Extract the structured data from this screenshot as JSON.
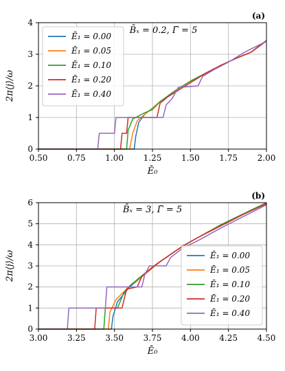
{
  "chart_data": [
    {
      "type": "line",
      "panel_label": "(a)",
      "annotation": "B̄ₓ = 0.2, Γ̄ = 5",
      "xlabel": "Ē₀",
      "ylabel": "2π⟨j⟩/ω",
      "xlim": [
        0.5,
        2.0
      ],
      "ylim": [
        0,
        4
      ],
      "xticks": [
        "0.50",
        "0.75",
        "1.00",
        "1.25",
        "1.50",
        "1.75",
        "2.00"
      ],
      "xtick_values": [
        0.5,
        0.75,
        1.0,
        1.25,
        1.5,
        1.75,
        2.0
      ],
      "yticks": [
        "0",
        "1",
        "2",
        "3",
        "4"
      ],
      "ytick_values": [
        0,
        1,
        2,
        3,
        4
      ],
      "grid": true,
      "legend_position": "top-left",
      "series": [
        {
          "name": "Ē₁ = 0.00",
          "color": "#1f77b4",
          "points": [
            [
              0.5,
              0
            ],
            [
              1.13,
              0
            ],
            [
              1.14,
              0.4
            ],
            [
              1.16,
              0.85
            ],
            [
              1.2,
              1.1
            ],
            [
              1.3,
              1.5
            ],
            [
              1.4,
              1.85
            ],
            [
              1.5,
              2.15
            ],
            [
              1.6,
              2.4
            ],
            [
              1.7,
              2.65
            ],
            [
              1.8,
              2.87
            ],
            [
              1.9,
              3.07
            ],
            [
              2.0,
              3.44
            ]
          ]
        },
        {
          "name": "Ē₁ = 0.05",
          "color": "#ff7f0e",
          "points": [
            [
              0.5,
              0
            ],
            [
              1.1,
              0
            ],
            [
              1.12,
              0.5
            ],
            [
              1.15,
              0.9
            ],
            [
              1.2,
              1.1
            ],
            [
              1.3,
              1.5
            ],
            [
              1.4,
              1.85
            ],
            [
              1.5,
              2.15
            ],
            [
              1.6,
              2.4
            ],
            [
              1.7,
              2.65
            ],
            [
              1.8,
              2.87
            ],
            [
              1.9,
              3.07
            ],
            [
              2.0,
              3.43
            ]
          ]
        },
        {
          "name": "Ē₁ = 0.10",
          "color": "#2ca02c",
          "points": [
            [
              0.5,
              0
            ],
            [
              1.08,
              0
            ],
            [
              1.09,
              0.6
            ],
            [
              1.12,
              0.95
            ],
            [
              1.2,
              1.15
            ],
            [
              1.25,
              1.25
            ],
            [
              1.3,
              1.5
            ],
            [
              1.4,
              1.85
            ],
            [
              1.5,
              2.15
            ],
            [
              1.6,
              2.4
            ],
            [
              1.7,
              2.65
            ],
            [
              1.8,
              2.87
            ],
            [
              1.9,
              3.07
            ],
            [
              2.0,
              3.43
            ]
          ]
        },
        {
          "name": "Ē₁ = 0.20",
          "color": "#d62728",
          "points": [
            [
              0.5,
              0
            ],
            [
              1.04,
              0
            ],
            [
              1.05,
              0.5
            ],
            [
              1.08,
              0.5
            ],
            [
              1.09,
              1.0
            ],
            [
              1.28,
              1.0
            ],
            [
              1.3,
              1.45
            ],
            [
              1.35,
              1.65
            ],
            [
              1.4,
              1.8
            ],
            [
              1.5,
              2.1
            ],
            [
              1.6,
              2.4
            ],
            [
              1.7,
              2.65
            ],
            [
              1.8,
              2.87
            ],
            [
              1.9,
              3.07
            ],
            [
              2.0,
              3.42
            ]
          ]
        },
        {
          "name": "Ē₁ = 0.40",
          "color": "#9467bd",
          "points": [
            [
              0.5,
              0
            ],
            [
              0.89,
              0
            ],
            [
              0.9,
              0.5
            ],
            [
              1.0,
              0.5
            ],
            [
              1.01,
              1.0
            ],
            [
              1.32,
              1.0
            ],
            [
              1.34,
              1.4
            ],
            [
              1.38,
              1.6
            ],
            [
              1.42,
              1.95
            ],
            [
              1.55,
              2.0
            ],
            [
              1.58,
              2.3
            ],
            [
              1.65,
              2.5
            ],
            [
              1.75,
              2.75
            ],
            [
              1.85,
              3.05
            ],
            [
              2.0,
              3.41
            ]
          ]
        }
      ]
    },
    {
      "type": "line",
      "panel_label": "(b)",
      "annotation": "B̄ₓ = 3, Γ̄ = 5",
      "xlabel": "Ē₀",
      "ylabel": "2π⟨j⟩/ω",
      "xlim": [
        3.0,
        4.5
      ],
      "ylim": [
        0,
        6
      ],
      "xticks": [
        "3.00",
        "3.25",
        "3.50",
        "3.75",
        "4.00",
        "4.25",
        "4.50"
      ],
      "xtick_values": [
        3.0,
        3.25,
        3.5,
        3.75,
        4.0,
        4.25,
        4.5
      ],
      "yticks": [
        "0",
        "1",
        "2",
        "3",
        "4",
        "5",
        "6"
      ],
      "ytick_values": [
        0,
        1,
        2,
        3,
        4,
        5,
        6
      ],
      "grid": true,
      "legend_position": "bottom-right",
      "series": [
        {
          "name": "Ē₁ = 0.00",
          "color": "#1f77b4",
          "points": [
            [
              3.0,
              0
            ],
            [
              3.48,
              0
            ],
            [
              3.49,
              0.6
            ],
            [
              3.52,
              1.3
            ],
            [
              3.6,
              2.0
            ],
            [
              3.7,
              2.6
            ],
            [
              3.8,
              3.2
            ],
            [
              3.9,
              3.7
            ],
            [
              4.0,
              4.15
            ],
            [
              4.1,
              4.55
            ],
            [
              4.2,
              4.95
            ],
            [
              4.3,
              5.3
            ],
            [
              4.4,
              5.65
            ],
            [
              4.5,
              6.0
            ]
          ]
        },
        {
          "name": "Ē₁ = 0.05",
          "color": "#ff7f0e",
          "points": [
            [
              3.0,
              0
            ],
            [
              3.46,
              0
            ],
            [
              3.47,
              0.8
            ],
            [
              3.51,
              1.4
            ],
            [
              3.6,
              2.05
            ],
            [
              3.7,
              2.6
            ],
            [
              3.8,
              3.2
            ],
            [
              3.9,
              3.7
            ],
            [
              4.0,
              4.15
            ],
            [
              4.1,
              4.55
            ],
            [
              4.2,
              4.95
            ],
            [
              4.3,
              5.3
            ],
            [
              4.4,
              5.65
            ],
            [
              4.5,
              6.0
            ]
          ]
        },
        {
          "name": "Ē₁ = 0.10",
          "color": "#2ca02c",
          "points": [
            [
              3.0,
              0
            ],
            [
              3.43,
              0
            ],
            [
              3.44,
              1.0
            ],
            [
              3.52,
              1.0
            ],
            [
              3.56,
              1.7
            ],
            [
              3.6,
              2.05
            ],
            [
              3.7,
              2.65
            ],
            [
              3.8,
              3.2
            ],
            [
              3.9,
              3.7
            ],
            [
              4.0,
              4.15
            ],
            [
              4.1,
              4.55
            ],
            [
              4.2,
              4.95
            ],
            [
              4.3,
              5.3
            ],
            [
              4.4,
              5.65
            ],
            [
              4.5,
              5.98
            ]
          ]
        },
        {
          "name": "Ē₁ = 0.20",
          "color": "#d62728",
          "points": [
            [
              3.0,
              0
            ],
            [
              3.37,
              0
            ],
            [
              3.38,
              1.0
            ],
            [
              3.55,
              1.0
            ],
            [
              3.58,
              1.9
            ],
            [
              3.65,
              2.0
            ],
            [
              3.68,
              2.5
            ],
            [
              3.75,
              2.95
            ],
            [
              3.85,
              3.45
            ],
            [
              3.95,
              3.95
            ],
            [
              4.05,
              4.35
            ],
            [
              4.2,
              4.9
            ],
            [
              4.35,
              5.45
            ],
            [
              4.5,
              5.95
            ]
          ]
        },
        {
          "name": "Ē₁ = 0.40",
          "color": "#9467bd",
          "points": [
            [
              3.0,
              0
            ],
            [
              3.19,
              0
            ],
            [
              3.2,
              1.0
            ],
            [
              3.44,
              1.0
            ],
            [
              3.45,
              2.0
            ],
            [
              3.68,
              2.0
            ],
            [
              3.7,
              2.6
            ],
            [
              3.73,
              3.0
            ],
            [
              3.84,
              3.0
            ],
            [
              3.87,
              3.4
            ],
            [
              3.95,
              3.85
            ],
            [
              4.05,
              4.2
            ],
            [
              4.2,
              4.8
            ],
            [
              4.35,
              5.35
            ],
            [
              4.5,
              5.9
            ]
          ]
        }
      ]
    }
  ]
}
